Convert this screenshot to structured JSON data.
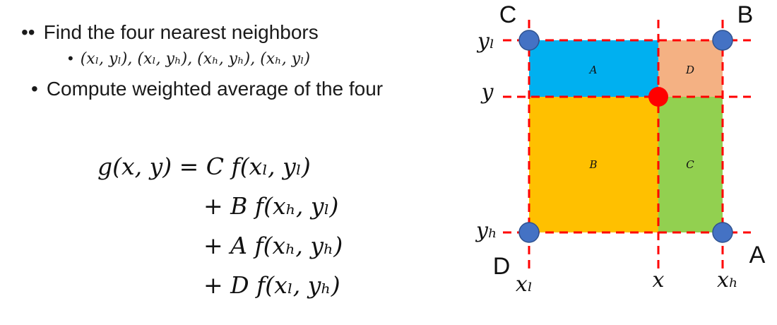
{
  "bullets": {
    "item1": {
      "marker": "••",
      "text": "Find the four nearest neighbors"
    },
    "item2": {
      "marker": "•",
      "text": "(xₗ, yₗ), (xₗ, yₕ), (xₕ, yₕ), (xₕ, yₗ)"
    },
    "item3": {
      "marker": "•",
      "text": "Compute weighted average of the four"
    }
  },
  "equation": {
    "line1": "g(x, y) = C f(xₗ, yₗ)",
    "line2": "+ B f(xₕ, yₗ)",
    "line3": "+ A f(xₕ, yₕ)",
    "line4": "+ D f(xₗ, yₕ)"
  },
  "diagram": {
    "corners": {
      "top_left": "C",
      "top_right": "B",
      "bottom_left": "D",
      "bottom_right": "A"
    },
    "regions": {
      "top_left": "A",
      "top_right": "D",
      "bottom_left": "B",
      "bottom_right": "C"
    },
    "y_labels": {
      "top": "yₗ",
      "middle": "y",
      "bottom": "yₕ"
    },
    "x_labels": {
      "left": "xₗ",
      "middle": "x",
      "right": "xₕ"
    },
    "colors": {
      "region_top_left": "#00b0f0",
      "region_top_right": "#f4b183",
      "region_bottom_left": "#ffc000",
      "region_bottom_right": "#92d050",
      "dashed_lines": "#ff0000",
      "corner_points": "#4472c4",
      "query_point": "#ff0000"
    }
  }
}
